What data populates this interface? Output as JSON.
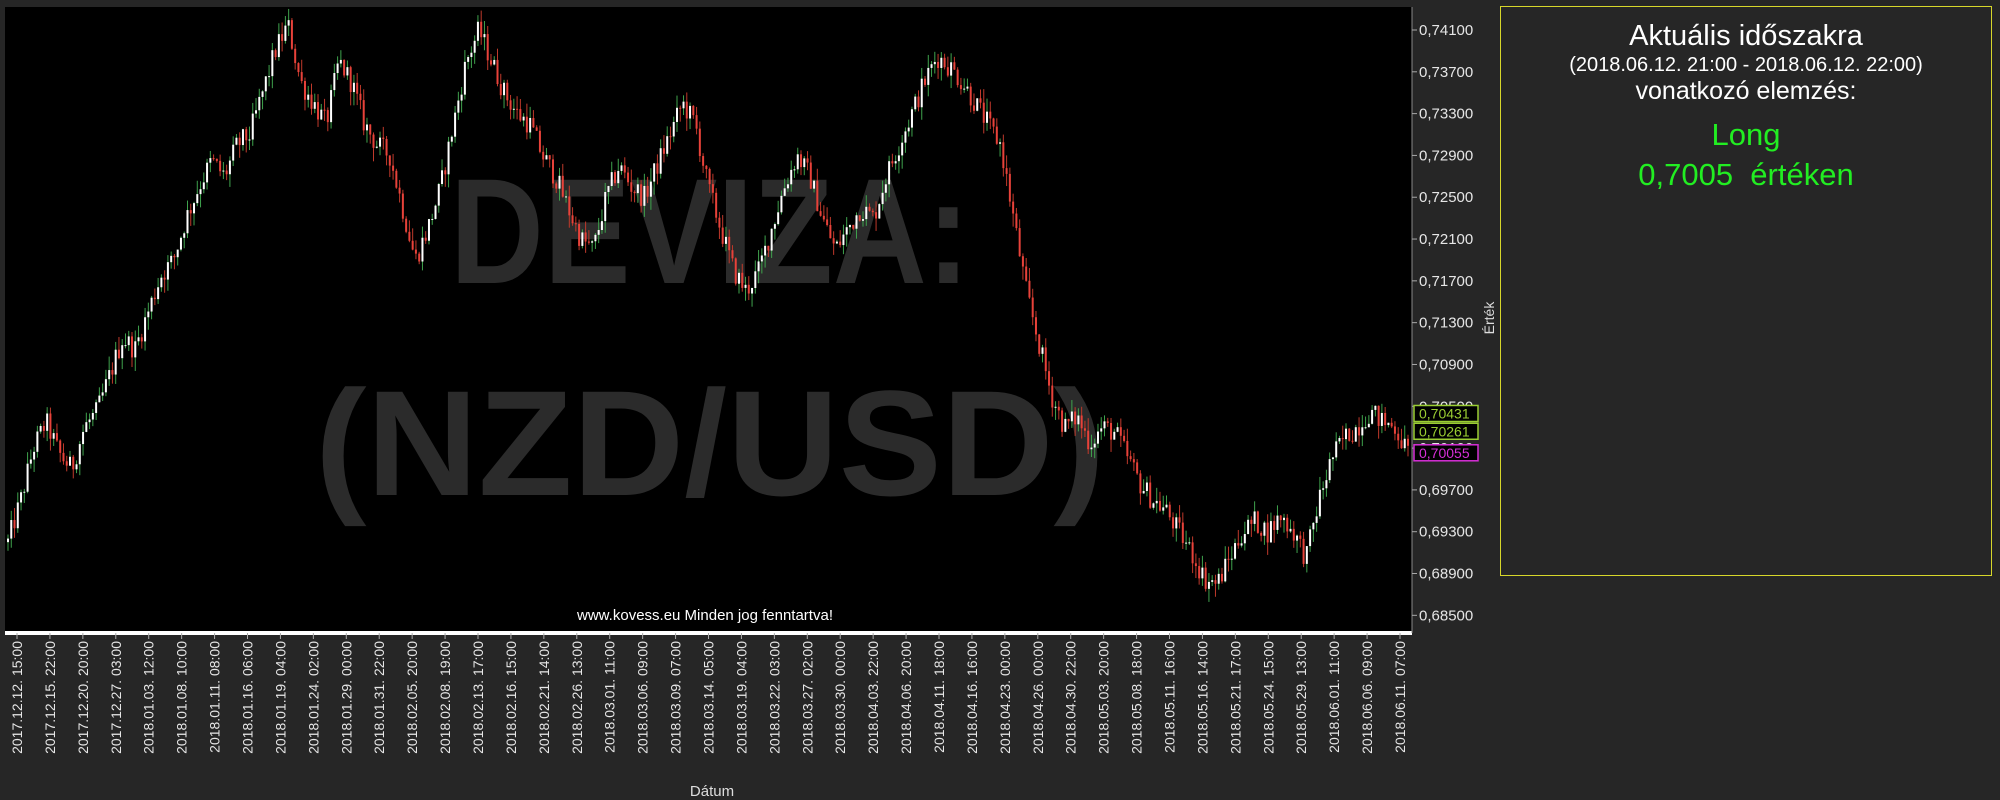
{
  "watermark": {
    "line1": "DEVIZA:",
    "line2": "(NZD/USD)"
  },
  "footer_note": "www.kovess.eu Minden jog fenntartva!",
  "analysis_panel": {
    "title": "Aktuális időszakra",
    "range": "(2018.06.12. 21:00 - 2018.06.12. 22:00)",
    "subtitle": "vonatkozó elemzés:",
    "signal": "Long",
    "value_text": "0,7005  értéken",
    "border_color": "#d6d62a",
    "signal_color": "#22ee22"
  },
  "chart_data": {
    "type": "line",
    "xlabel": "Dátum",
    "ylabel": "Érték",
    "ylim": [
      0.6835,
      0.7432
    ],
    "grid": false,
    "y_ticks": [
      "0,74100",
      "0,73700",
      "0,73300",
      "0,72900",
      "0,72500",
      "0,72100",
      "0,71700",
      "0,71300",
      "0,70900",
      "0,70500",
      "0,70100",
      "0,69700",
      "0,69300",
      "0,68900",
      "0,68500"
    ],
    "y_tick_values": [
      0.741,
      0.737,
      0.733,
      0.729,
      0.725,
      0.721,
      0.717,
      0.713,
      0.709,
      0.705,
      0.701,
      0.697,
      0.693,
      0.689,
      0.685
    ],
    "x_ticks": [
      "2017.12.12. 15:00",
      "2017.12.15. 22:00",
      "2017.12.20. 20:00",
      "2017.12.27. 03:00",
      "2018.01.03. 12:00",
      "2018.01.08. 10:00",
      "2018.01.11. 08:00",
      "2018.01.16. 06:00",
      "2018.01.19. 04:00",
      "2018.01.24. 02:00",
      "2018.01.29. 00:00",
      "2018.01.31. 22:00",
      "2018.02.05. 20:00",
      "2018.02.08. 19:00",
      "2018.02.13. 17:00",
      "2018.02.16. 15:00",
      "2018.02.21. 14:00",
      "2018.02.26. 13:00",
      "2018.03.01. 11:00",
      "2018.03.06. 09:00",
      "2018.03.09. 07:00",
      "2018.03.14. 05:00",
      "2018.03.19. 04:00",
      "2018.03.22. 03:00",
      "2018.03.27. 02:00",
      "2018.03.30. 00:00",
      "2018.04.03. 22:00",
      "2018.04.06. 20:00",
      "2018.04.11. 18:00",
      "2018.04.16. 16:00",
      "2018.04.23. 00:00",
      "2018.04.26. 00:00",
      "2018.04.30. 22:00",
      "2018.05.03. 20:00",
      "2018.05.08. 18:00",
      "2018.05.11. 16:00",
      "2018.05.16. 14:00",
      "2018.05.21. 17:00",
      "2018.05.24. 15:00",
      "2018.05.29. 13:00",
      "2018.06.01. 11:00",
      "2018.06.06. 09:00",
      "2018.06.11. 07:00"
    ],
    "price_labels": [
      {
        "text": "0,70431",
        "value": 0.70431,
        "color": "#9acd32"
      },
      {
        "text": "0,70261",
        "value": 0.70261,
        "color": "#9acd32"
      },
      {
        "text": "0,70055",
        "value": 0.70055,
        "color": "#d62fd6"
      }
    ],
    "series": [
      {
        "values": [
          0.692,
          0.696,
          0.701,
          0.7035,
          0.7005,
          0.699,
          0.703,
          0.7045,
          0.708,
          0.7115,
          0.7105,
          0.714,
          0.7175,
          0.719,
          0.723,
          0.726,
          0.7285,
          0.727,
          0.73,
          0.731,
          0.735,
          0.739,
          0.7415,
          0.736,
          0.734,
          0.732,
          0.738,
          0.736,
          0.732,
          0.73,
          0.729,
          0.724,
          0.719,
          0.722,
          0.726,
          0.732,
          0.738,
          0.741,
          0.738,
          0.735,
          0.733,
          0.732,
          0.729,
          0.727,
          0.724,
          0.721,
          0.72,
          0.725,
          0.728,
          0.726,
          0.725,
          0.728,
          0.731,
          0.734,
          0.732,
          0.726,
          0.722,
          0.718,
          0.716,
          0.718,
          0.722,
          0.726,
          0.729,
          0.727,
          0.723,
          0.72,
          0.722,
          0.724,
          0.723,
          0.727,
          0.73,
          0.733,
          0.736,
          0.7385,
          0.7375,
          0.736,
          0.734,
          0.732,
          0.73,
          0.723,
          0.716,
          0.711,
          0.706,
          0.703,
          0.704,
          0.7015,
          0.703,
          0.7025,
          0.7,
          0.6975,
          0.696,
          0.695,
          0.693,
          0.691,
          0.6885,
          0.688,
          0.6905,
          0.693,
          0.694,
          0.693,
          0.6945,
          0.693,
          0.6905,
          0.696,
          0.7,
          0.702,
          0.703,
          0.7045,
          0.7035,
          0.703,
          0.7005
        ]
      }
    ]
  }
}
